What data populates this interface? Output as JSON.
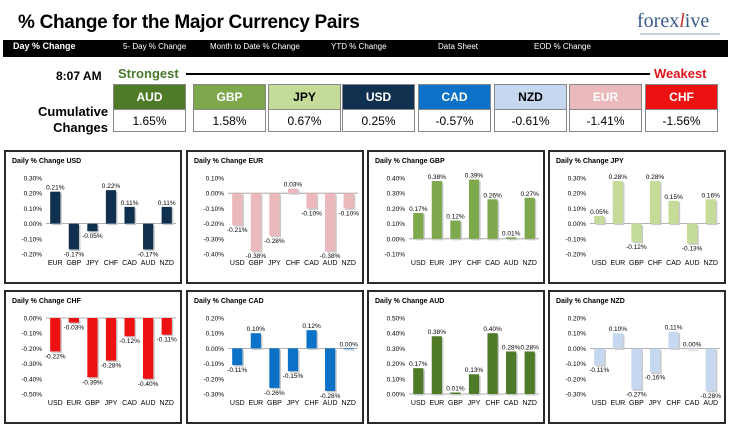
{
  "header": {
    "title": "% Change for the Major Currency Pairs",
    "logo_main": "forex",
    "logo_x": "l",
    "logo_tail": "ive"
  },
  "nav": [
    {
      "label": "Day % Change",
      "active": true
    },
    {
      "label": "5- Day % Change",
      "active": false
    },
    {
      "label": "Month to Date % Change",
      "active": false
    },
    {
      "label": "YTD % Change",
      "active": false
    },
    {
      "label": "Data Sheet",
      "active": false
    },
    {
      "label": "EOD % Change",
      "active": false
    }
  ],
  "time": "8:07 AM",
  "strongest_label": "Strongest",
  "weakest_label": "Weakest",
  "cumulative_label_1": "Cumulative",
  "cumulative_label_2": "Changes",
  "currencies": [
    {
      "name": "AUD",
      "value": "1.65%",
      "bg": "#4f7a28",
      "fg": "#ffffff"
    },
    {
      "name": "GBP",
      "value": "1.58%",
      "bg": "#7ea84c",
      "fg": "#ffffff"
    },
    {
      "name": "JPY",
      "value": "0.67%",
      "bg": "#c4dc97",
      "fg": "#000000"
    },
    {
      "name": "USD",
      "value": "0.25%",
      "bg": "#10304f",
      "fg": "#ffffff"
    },
    {
      "name": "CAD",
      "value": "-0.57%",
      "bg": "#0b72c7",
      "fg": "#ffffff"
    },
    {
      "name": "NZD",
      "value": "-0.61%",
      "bg": "#c6d8f0",
      "fg": "#000000"
    },
    {
      "name": "EUR",
      "value": "-1.41%",
      "bg": "#ebb9bb",
      "fg": "#ffffff"
    },
    {
      "name": "CHF",
      "value": "-1.56%",
      "bg": "#ee1111",
      "fg": "#ffffff"
    }
  ],
  "chart_data": [
    {
      "type": "bar",
      "title": "Daily % Change USD",
      "color": "#10304f",
      "categories": [
        "EUR",
        "GBP",
        "JPY",
        "CHF",
        "CAD",
        "AUD",
        "NZD"
      ],
      "values": [
        0.21,
        -0.17,
        -0.05,
        0.22,
        0.11,
        -0.17,
        0.11
      ],
      "labels": [
        "0.21%",
        "-0.17%",
        "-0.05%",
        "0.22%",
        "0.11%",
        "-0.17%",
        "0.11%"
      ],
      "ylim": [
        -0.2,
        0.3
      ],
      "ticks": [
        0.3,
        0.2,
        0.1,
        0.0,
        -0.1,
        -0.2
      ],
      "tick_labels": [
        "0.30%",
        "0.20%",
        "0.10%",
        "0.00%",
        "-0.10%",
        "-0.20%"
      ]
    },
    {
      "type": "bar",
      "title": "Daily % Change EUR",
      "color": "#ebb9bb",
      "categories": [
        "USD",
        "GBP",
        "JPY",
        "CHF",
        "CAD",
        "AUD",
        "NZD"
      ],
      "values": [
        -0.21,
        -0.38,
        -0.28,
        0.03,
        -0.1,
        -0.38,
        -0.1
      ],
      "labels": [
        "-0.21%",
        "-0.38%",
        "-0.28%",
        "0.03%",
        "-0.10%",
        "-0.38%",
        "-0.10%"
      ],
      "ylim": [
        -0.4,
        0.1
      ],
      "ticks": [
        0.1,
        0.0,
        -0.1,
        -0.2,
        -0.3,
        -0.4
      ],
      "tick_labels": [
        "0.10%",
        "0.00%",
        "-0.10%",
        "-0.20%",
        "-0.30%",
        "-0.40%"
      ]
    },
    {
      "type": "bar",
      "title": "Daily % Change GBP",
      "color": "#7ea84c",
      "categories": [
        "USD",
        "EUR",
        "JPY",
        "CHF",
        "CAD",
        "AUD",
        "NZD"
      ],
      "values": [
        0.17,
        0.38,
        0.12,
        0.39,
        0.26,
        0.01,
        0.27
      ],
      "labels": [
        "0.17%",
        "0.38%",
        "0.12%",
        "0.39%",
        "0.26%",
        "0.01%",
        "0.27%"
      ],
      "ylim": [
        -0.1,
        0.4
      ],
      "ticks": [
        0.4,
        0.3,
        0.2,
        0.1,
        0.0,
        -0.1
      ],
      "tick_labels": [
        "0.40%",
        "0.30%",
        "0.20%",
        "0.10%",
        "0.00%",
        "-0.10%"
      ]
    },
    {
      "type": "bar",
      "title": "Daily % Change JPY",
      "color": "#c4dc97",
      "categories": [
        "USD",
        "EUR",
        "GBP",
        "CHF",
        "CAD",
        "AUD",
        "NZD"
      ],
      "values": [
        0.05,
        0.28,
        -0.12,
        0.28,
        0.15,
        -0.13,
        0.16
      ],
      "labels": [
        "0.05%",
        "0.28%",
        "-0.12%",
        "0.28%",
        "0.15%",
        "-0.13%",
        "0.16%"
      ],
      "ylim": [
        -0.2,
        0.3
      ],
      "ticks": [
        0.3,
        0.2,
        0.1,
        0.0,
        -0.1,
        -0.2
      ],
      "tick_labels": [
        "0.30%",
        "0.20%",
        "0.10%",
        "0.00%",
        "-0.10%",
        "-0.20%"
      ]
    },
    {
      "type": "bar",
      "title": "Daily % Change CHF",
      "color": "#ee1111",
      "categories": [
        "USD",
        "EUR",
        "GBP",
        "JPY",
        "CAD",
        "AUD",
        "NZD"
      ],
      "values": [
        -0.22,
        -0.03,
        -0.39,
        -0.28,
        -0.12,
        -0.4,
        -0.11
      ],
      "labels": [
        "-0.22%",
        "-0.03%",
        "-0.39%",
        "-0.28%",
        "-0.12%",
        "-0.40%",
        "-0.11%"
      ],
      "ylim": [
        -0.5,
        0.0
      ],
      "ticks": [
        0.0,
        -0.1,
        -0.2,
        -0.3,
        -0.4,
        -0.5
      ],
      "tick_labels": [
        "0.00%",
        "-0.10%",
        "-0.20%",
        "-0.30%",
        "-0.40%",
        "-0.50%"
      ]
    },
    {
      "type": "bar",
      "title": "Daily % Change CAD",
      "color": "#0b72c7",
      "categories": [
        "USD",
        "EUR",
        "GBP",
        "JPY",
        "CHF",
        "AUD",
        "NZD"
      ],
      "values": [
        -0.11,
        0.1,
        -0.26,
        -0.15,
        0.12,
        -0.28,
        0.0
      ],
      "labels": [
        "-0.11%",
        "0.10%",
        "-0.26%",
        "-0.15%",
        "0.12%",
        "-0.28%",
        "0.00%"
      ],
      "ylim": [
        -0.3,
        0.2
      ],
      "ticks": [
        0.2,
        0.1,
        0.0,
        -0.1,
        -0.2,
        -0.3
      ],
      "tick_labels": [
        "0.20%",
        "0.10%",
        "0.00%",
        "-0.10%",
        "-0.20%",
        "-0.30%"
      ]
    },
    {
      "type": "bar",
      "title": "Daily % Change AUD",
      "color": "#4f7a28",
      "categories": [
        "USD",
        "EUR",
        "GBP",
        "JPY",
        "CHF",
        "CAD",
        "NZD"
      ],
      "values": [
        0.17,
        0.38,
        0.01,
        0.13,
        0.4,
        0.28,
        0.28
      ],
      "labels": [
        "0.17%",
        "0.38%",
        "0.01%",
        "0.13%",
        "0.40%",
        "0.28%",
        "0.28%"
      ],
      "ylim": [
        0.0,
        0.5
      ],
      "ticks": [
        0.5,
        0.4,
        0.3,
        0.2,
        0.1,
        0.0
      ],
      "tick_labels": [
        "0.50%",
        "0.40%",
        "0.30%",
        "0.20%",
        "0.10%",
        "0.00%"
      ]
    },
    {
      "type": "bar",
      "title": "Daily % Change NZD",
      "color": "#c6d8f0",
      "categories": [
        "USD",
        "EUR",
        "GBP",
        "JPY",
        "CHF",
        "CAD",
        "AUD"
      ],
      "values": [
        -0.11,
        0.1,
        -0.27,
        -0.16,
        0.11,
        0.0,
        -0.28
      ],
      "labels": [
        "-0.11%",
        "0.10%",
        "-0.27%",
        "-0.16%",
        "0.11%",
        "0.00%",
        "-0.28%"
      ],
      "ylim": [
        -0.3,
        0.2
      ],
      "ticks": [
        0.2,
        0.1,
        0.0,
        -0.1,
        -0.2,
        -0.3
      ],
      "tick_labels": [
        "0.20%",
        "0.10%",
        "0.00%",
        "-0.10%",
        "-0.20%",
        "-0.30%"
      ]
    }
  ]
}
